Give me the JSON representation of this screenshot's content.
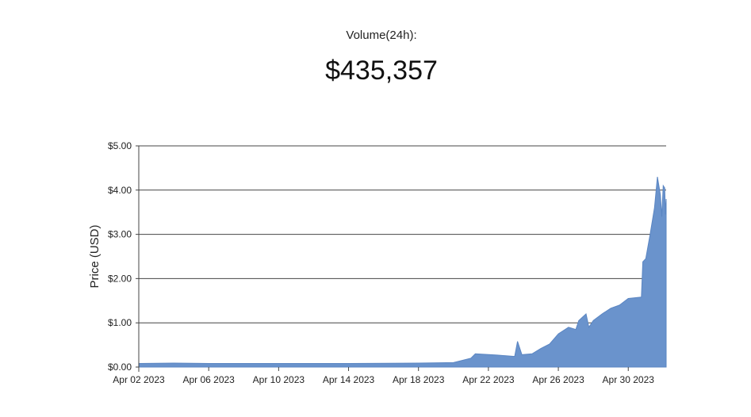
{
  "stat": {
    "label": "Volume(24h):",
    "value": "$435,357"
  },
  "chart_data": {
    "type": "area",
    "title": "",
    "xlabel": "",
    "ylabel": "Price (USD)",
    "ylim": [
      0,
      5
    ],
    "grid": "horizontal",
    "fill_color": "#6a93cc",
    "y_ticks": [
      {
        "value": 0,
        "label": "$0.00"
      },
      {
        "value": 1,
        "label": "$1.00"
      },
      {
        "value": 2,
        "label": "$2.00"
      },
      {
        "value": 3,
        "label": "$3.00"
      },
      {
        "value": 4,
        "label": "$4.00"
      },
      {
        "value": 5,
        "label": "$5.00"
      }
    ],
    "x_ticks": [
      {
        "value": "2023-04-02",
        "label": "Apr 02 2023"
      },
      {
        "value": "2023-04-06",
        "label": "Apr 06 2023"
      },
      {
        "value": "2023-04-10",
        "label": "Apr 10 2023"
      },
      {
        "value": "2023-04-14",
        "label": "Apr 14 2023"
      },
      {
        "value": "2023-04-18",
        "label": "Apr 18 2023"
      },
      {
        "value": "2023-04-22",
        "label": "Apr 22 2023"
      },
      {
        "value": "2023-04-26",
        "label": "Apr 26 2023"
      },
      {
        "value": "2023-04-30",
        "label": "Apr 30 2023"
      }
    ],
    "xlim": [
      "2023-04-02T00:00",
      "2023-05-02T04:00"
    ],
    "points": [
      {
        "x": "2023-04-02T00:00",
        "y": 0.08
      },
      {
        "x": "2023-04-04T00:00",
        "y": 0.09
      },
      {
        "x": "2023-04-06T00:00",
        "y": 0.08
      },
      {
        "x": "2023-04-10T00:00",
        "y": 0.08
      },
      {
        "x": "2023-04-14T00:00",
        "y": 0.08
      },
      {
        "x": "2023-04-18T00:00",
        "y": 0.09
      },
      {
        "x": "2023-04-20T00:00",
        "y": 0.1
      },
      {
        "x": "2023-04-21T00:00",
        "y": 0.2
      },
      {
        "x": "2023-04-21T06:00",
        "y": 0.3
      },
      {
        "x": "2023-04-22T12:00",
        "y": 0.27
      },
      {
        "x": "2023-04-23T12:00",
        "y": 0.24
      },
      {
        "x": "2023-04-23T16:00",
        "y": 0.58
      },
      {
        "x": "2023-04-23T22:00",
        "y": 0.28
      },
      {
        "x": "2023-04-24T12:00",
        "y": 0.3
      },
      {
        "x": "2023-04-25T00:00",
        "y": 0.42
      },
      {
        "x": "2023-04-25T12:00",
        "y": 0.52
      },
      {
        "x": "2023-04-26T00:00",
        "y": 0.75
      },
      {
        "x": "2023-04-26T14:00",
        "y": 0.9
      },
      {
        "x": "2023-04-27T00:00",
        "y": 0.85
      },
      {
        "x": "2023-04-27T04:00",
        "y": 1.05
      },
      {
        "x": "2023-04-27T14:00",
        "y": 1.2
      },
      {
        "x": "2023-04-27T18:00",
        "y": 0.9
      },
      {
        "x": "2023-04-28T00:00",
        "y": 1.05
      },
      {
        "x": "2023-04-28T12:00",
        "y": 1.2
      },
      {
        "x": "2023-04-29T00:00",
        "y": 1.33
      },
      {
        "x": "2023-04-29T12:00",
        "y": 1.4
      },
      {
        "x": "2023-04-30T00:00",
        "y": 1.55
      },
      {
        "x": "2023-04-30T18:00",
        "y": 1.58
      },
      {
        "x": "2023-04-30T20:00",
        "y": 2.38
      },
      {
        "x": "2023-05-01T00:00",
        "y": 2.45
      },
      {
        "x": "2023-05-01T06:00",
        "y": 3.0
      },
      {
        "x": "2023-05-01T12:00",
        "y": 3.6
      },
      {
        "x": "2023-05-01T16:00",
        "y": 4.3
      },
      {
        "x": "2023-05-01T20:00",
        "y": 3.9
      },
      {
        "x": "2023-05-01T22:00",
        "y": 3.4
      },
      {
        "x": "2023-05-02T00:00",
        "y": 4.1
      },
      {
        "x": "2023-05-02T02:00",
        "y": 4.05
      },
      {
        "x": "2023-05-02T03:00",
        "y": 3.45
      },
      {
        "x": "2023-05-02T04:00",
        "y": 3.8
      }
    ]
  }
}
